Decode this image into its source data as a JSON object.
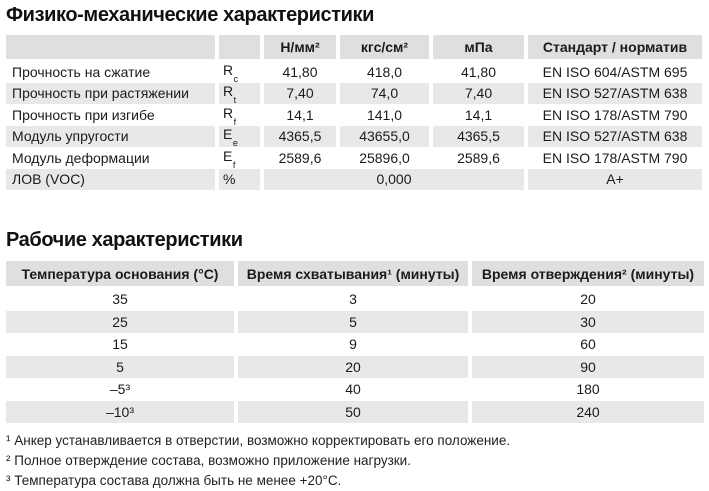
{
  "colors": {
    "header_bg": "#dfdfdf",
    "alt_row_bg": "#e8e8e8",
    "text": "#1b1b1b"
  },
  "section1": {
    "title": "Физико-механические характеристики"
  },
  "section2": {
    "title": "Рабочие характеристики"
  },
  "table1": {
    "headers": {
      "unit1": "Н/мм²",
      "unit2": "кгс/см²",
      "unit3": "мПа",
      "standard": "Стандарт / норматив"
    },
    "rows": [
      {
        "name": "Прочность на сжатие",
        "sym": "R",
        "sub": "c",
        "v1": "41,80",
        "v2": "418,0",
        "v3": "41,80",
        "std": "EN ISO 604/ASTM 695"
      },
      {
        "name": "Прочность при растяжении",
        "sym": "R",
        "sub": "t",
        "v1": "7,40",
        "v2": "74,0",
        "v3": "7,40",
        "std": "EN ISO 527/ASTM 638"
      },
      {
        "name": "Прочность при изгибе",
        "sym": "R",
        "sub": "f",
        "v1": "14,1",
        "v2": "141,0",
        "v3": "14,1",
        "std": "EN ISO 178/ASTM 790"
      },
      {
        "name": "Модуль упругости",
        "sym": "E",
        "sub": "e",
        "v1": "4365,5",
        "v2": "43655,0",
        "v3": "4365,5",
        "std": "EN ISO 527/ASTM 638"
      },
      {
        "name": "Модуль деформации",
        "sym": "E",
        "sub": "f",
        "v1": "2589,6",
        "v2": "25896,0",
        "v3": "2589,6",
        "std": "EN ISO 178/ASTM 790"
      }
    ],
    "voc_row": {
      "name": "ЛОВ (VOC)",
      "sym": "%",
      "value": "0,000",
      "std": "A+"
    }
  },
  "table2": {
    "headers": {
      "temp": "Температура основания (°С)",
      "set": "Время схватывания¹ (минуты)",
      "cure": "Время отверждения² (минуты)"
    },
    "rows": [
      {
        "temp": "35",
        "set": "3",
        "cure": "20"
      },
      {
        "temp": "25",
        "set": "5",
        "cure": "30"
      },
      {
        "temp": "15",
        "set": "9",
        "cure": "60"
      },
      {
        "temp": "5",
        "set": "20",
        "cure": "90"
      },
      {
        "temp": "–5³",
        "set": "40",
        "cure": "180"
      },
      {
        "temp": "–10³",
        "set": "50",
        "cure": "240"
      }
    ]
  },
  "footnotes": [
    "¹ Анкер устанавливается в отверстии, возможно корректировать его положение.",
    "² Полное отверждение состава, возможно приложение нагрузки.",
    "³ Температура состава должна быть не менее +20°С."
  ]
}
